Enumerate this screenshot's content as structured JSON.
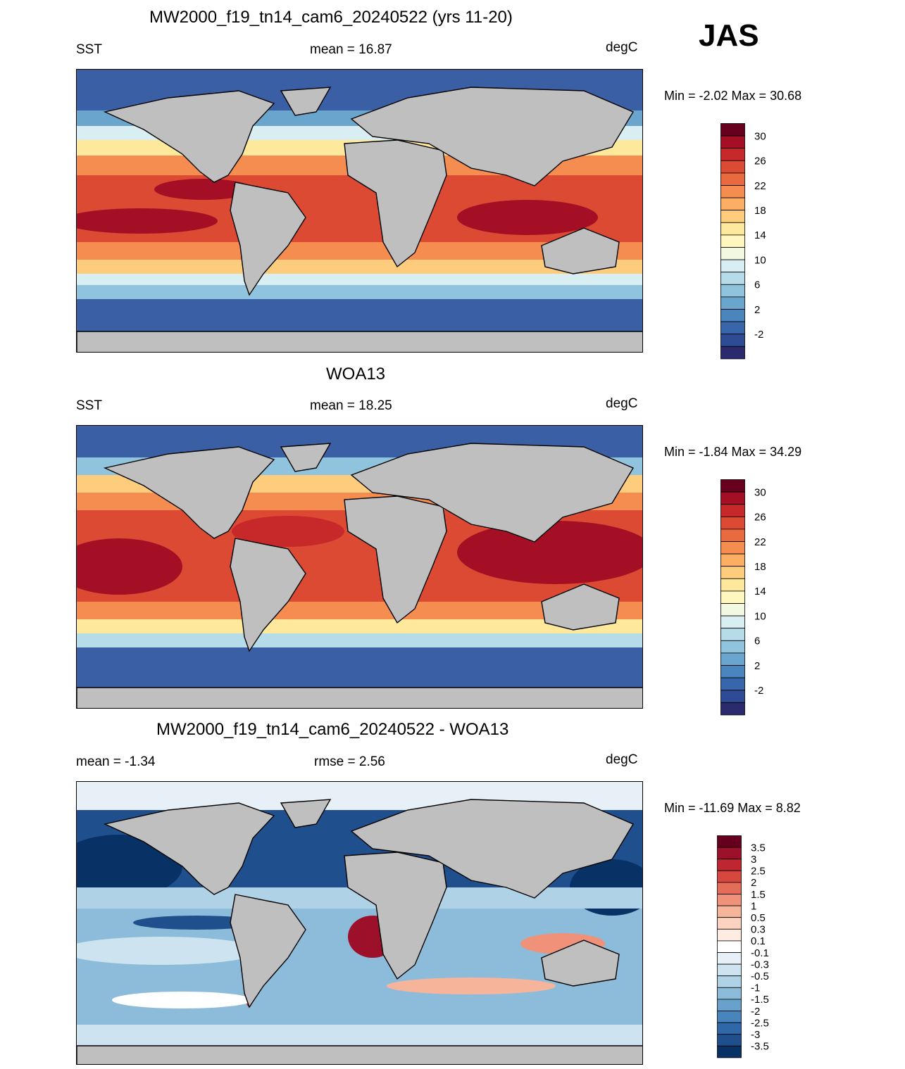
{
  "season": "JAS",
  "panels": [
    {
      "title": "MW2000_f19_tn14_cam6_20240522 (yrs 11-20)",
      "left_label": "SST",
      "center_label": "mean =  16.87",
      "units": "degC",
      "minmax": "Min =  -2.02 Max =  30.68"
    },
    {
      "title": "WOA13",
      "left_label": "SST",
      "center_label": "mean =  18.25",
      "units": "degC",
      "minmax": "Min =  -1.84 Max =  34.29"
    },
    {
      "title": "MW2000_f19_tn14_cam6_20240522 - WOA13",
      "left_label": "mean =  -1.34",
      "center_label": "rmse =   2.56",
      "units": "degC",
      "minmax": "Min = -11.69 Max =   8.82"
    }
  ],
  "colorbar_abs": {
    "labels": [
      "30",
      "26",
      "22",
      "18",
      "14",
      "10",
      "6",
      "2",
      "-2"
    ],
    "colors": [
      "#67001f",
      "#a50f25",
      "#c7292a",
      "#dc4a33",
      "#ea6a3f",
      "#f68d50",
      "#fbae64",
      "#fdcd7d",
      "#fee89b",
      "#fff7bd",
      "#f2f9e0",
      "#d9eef2",
      "#b6dcea",
      "#90c3dd",
      "#6aa5cd",
      "#4a86bd",
      "#3866aa",
      "#2d4c95",
      "#2c2a6e"
    ]
  },
  "colorbar_diff": {
    "labels": [
      "3.5",
      "3",
      "2.5",
      "2",
      "1.5",
      "1",
      "0.5",
      "0.3",
      "0.1",
      "-0.1",
      "-0.3",
      "-0.5",
      "-1",
      "-1.5",
      "-2",
      "-2.5",
      "-3",
      "-3.5"
    ],
    "colors": [
      "#67001f",
      "#9c1129",
      "#c0262f",
      "#d6473f",
      "#e46d5a",
      "#ef9279",
      "#f6b49b",
      "#fbd3c0",
      "#feece2",
      "#ffffff",
      "#e6f0f6",
      "#cde3ef",
      "#b0d2e7",
      "#8dbcdb",
      "#67a1cc",
      "#4785bc",
      "#2e68a8",
      "#1f4f8c",
      "#083165"
    ]
  },
  "map_colors": {
    "land": "#bfbfbf",
    "coast": "#000000"
  }
}
